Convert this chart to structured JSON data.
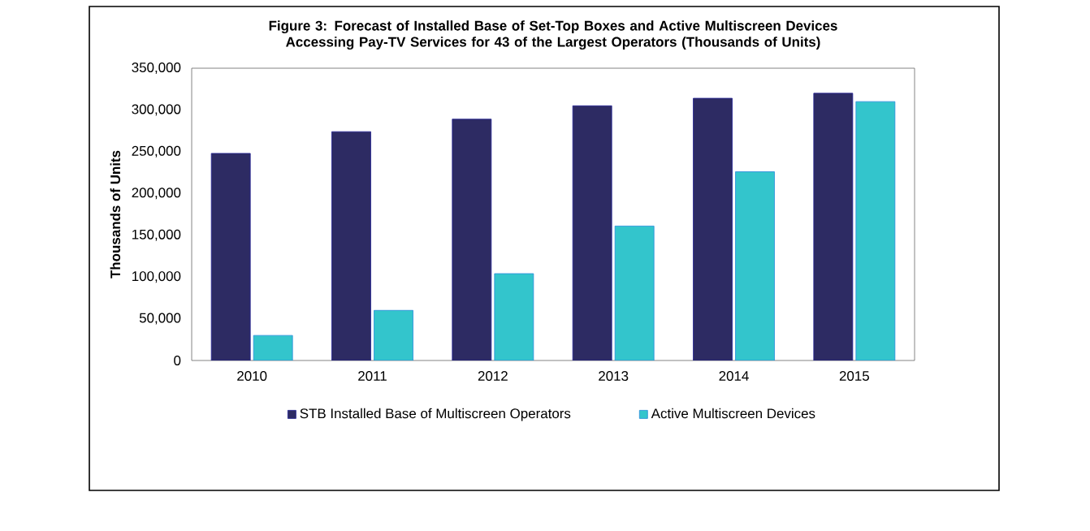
{
  "chart_data": {
    "type": "bar",
    "title": "Figure 3: Forecast of Installed Base of Set-Top Boxes and Active Multiscreen Devices Accessing Pay-TV Services for 43 of the Largest Operators (Thousands of Units)",
    "ylabel": "Thousands of Units",
    "categories": [
      "2010",
      "2011",
      "2012",
      "2013",
      "2014",
      "2015"
    ],
    "series": [
      {
        "name": "STB Installed Base of Multiscreen Operators",
        "color": "#2d2b63",
        "values": [
          248000,
          274000,
          289000,
          305000,
          314000,
          320000
        ]
      },
      {
        "name": "Active Multiscreen Devices",
        "color": "#33c5cc",
        "values": [
          30000,
          60000,
          104000,
          161000,
          226000,
          310000
        ]
      }
    ],
    "ylim": [
      0,
      350000
    ],
    "yticks": [
      0,
      {
        "value": 50000,
        "label": "50,000"
      },
      {
        "value": 100000,
        "label": "100,000"
      },
      {
        "value": 150000,
        "label": "150,000"
      },
      {
        "value": 200000,
        "label": "200,000"
      },
      {
        "value": 250000,
        "label": "250,000"
      },
      {
        "value": 300000,
        "label": "300,000"
      },
      {
        "value": 350000,
        "label": "350,000"
      }
    ],
    "grid": false,
    "legend": "bottom"
  }
}
